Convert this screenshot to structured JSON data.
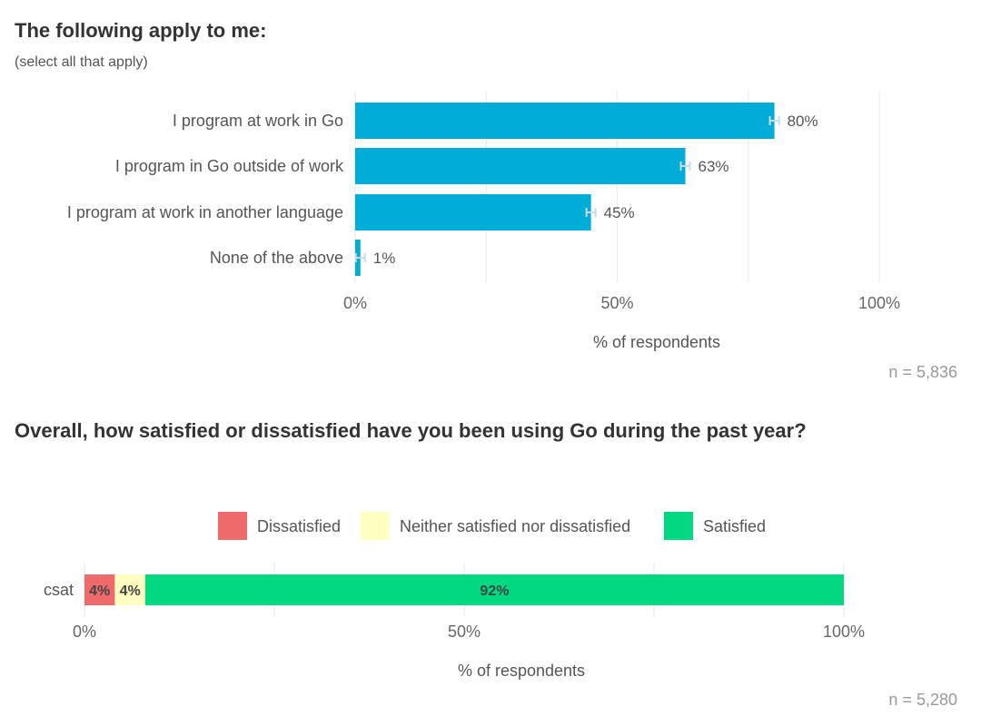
{
  "chart_data": [
    {
      "type": "bar",
      "orientation": "horizontal",
      "title": "The following apply to me:",
      "subtitle": "(select all that apply)",
      "categories": [
        "I program at work in Go",
        "I program in Go outside of work",
        "I program at work in another language",
        "None of the above"
      ],
      "values": [
        80,
        63,
        45,
        1
      ],
      "value_labels": [
        "80%",
        "63%",
        "45%",
        "1%"
      ],
      "error_bars": true,
      "xlabel": "% of respondents",
      "xlim": [
        0,
        100
      ],
      "xticks": [
        "0%",
        "50%",
        "100%"
      ],
      "grid": true,
      "bar_color": "#00add8",
      "n_label": "n =  5,836"
    },
    {
      "type": "bar",
      "orientation": "horizontal",
      "stacked": true,
      "title": "Overall, how satisfied or dissatisfied have you been using Go during the past year?",
      "categories": [
        "csat"
      ],
      "series": [
        {
          "name": "Dissatisfied",
          "values": [
            4
          ],
          "label": "4%",
          "color": "#ef6b6b"
        },
        {
          "name": "Neither satisfied nor dissatisfied",
          "values": [
            4
          ],
          "label": "4%",
          "color": "#ffffc2"
        },
        {
          "name": "Satisfied",
          "values": [
            92
          ],
          "label": "92%",
          "color": "#00d982"
        }
      ],
      "legend_position": "top",
      "xlabel": "% of respondents",
      "xlim": [
        0,
        100
      ],
      "xticks": [
        "0%",
        "50%",
        "100%"
      ],
      "grid": true,
      "n_label": "n =  5,280"
    }
  ]
}
